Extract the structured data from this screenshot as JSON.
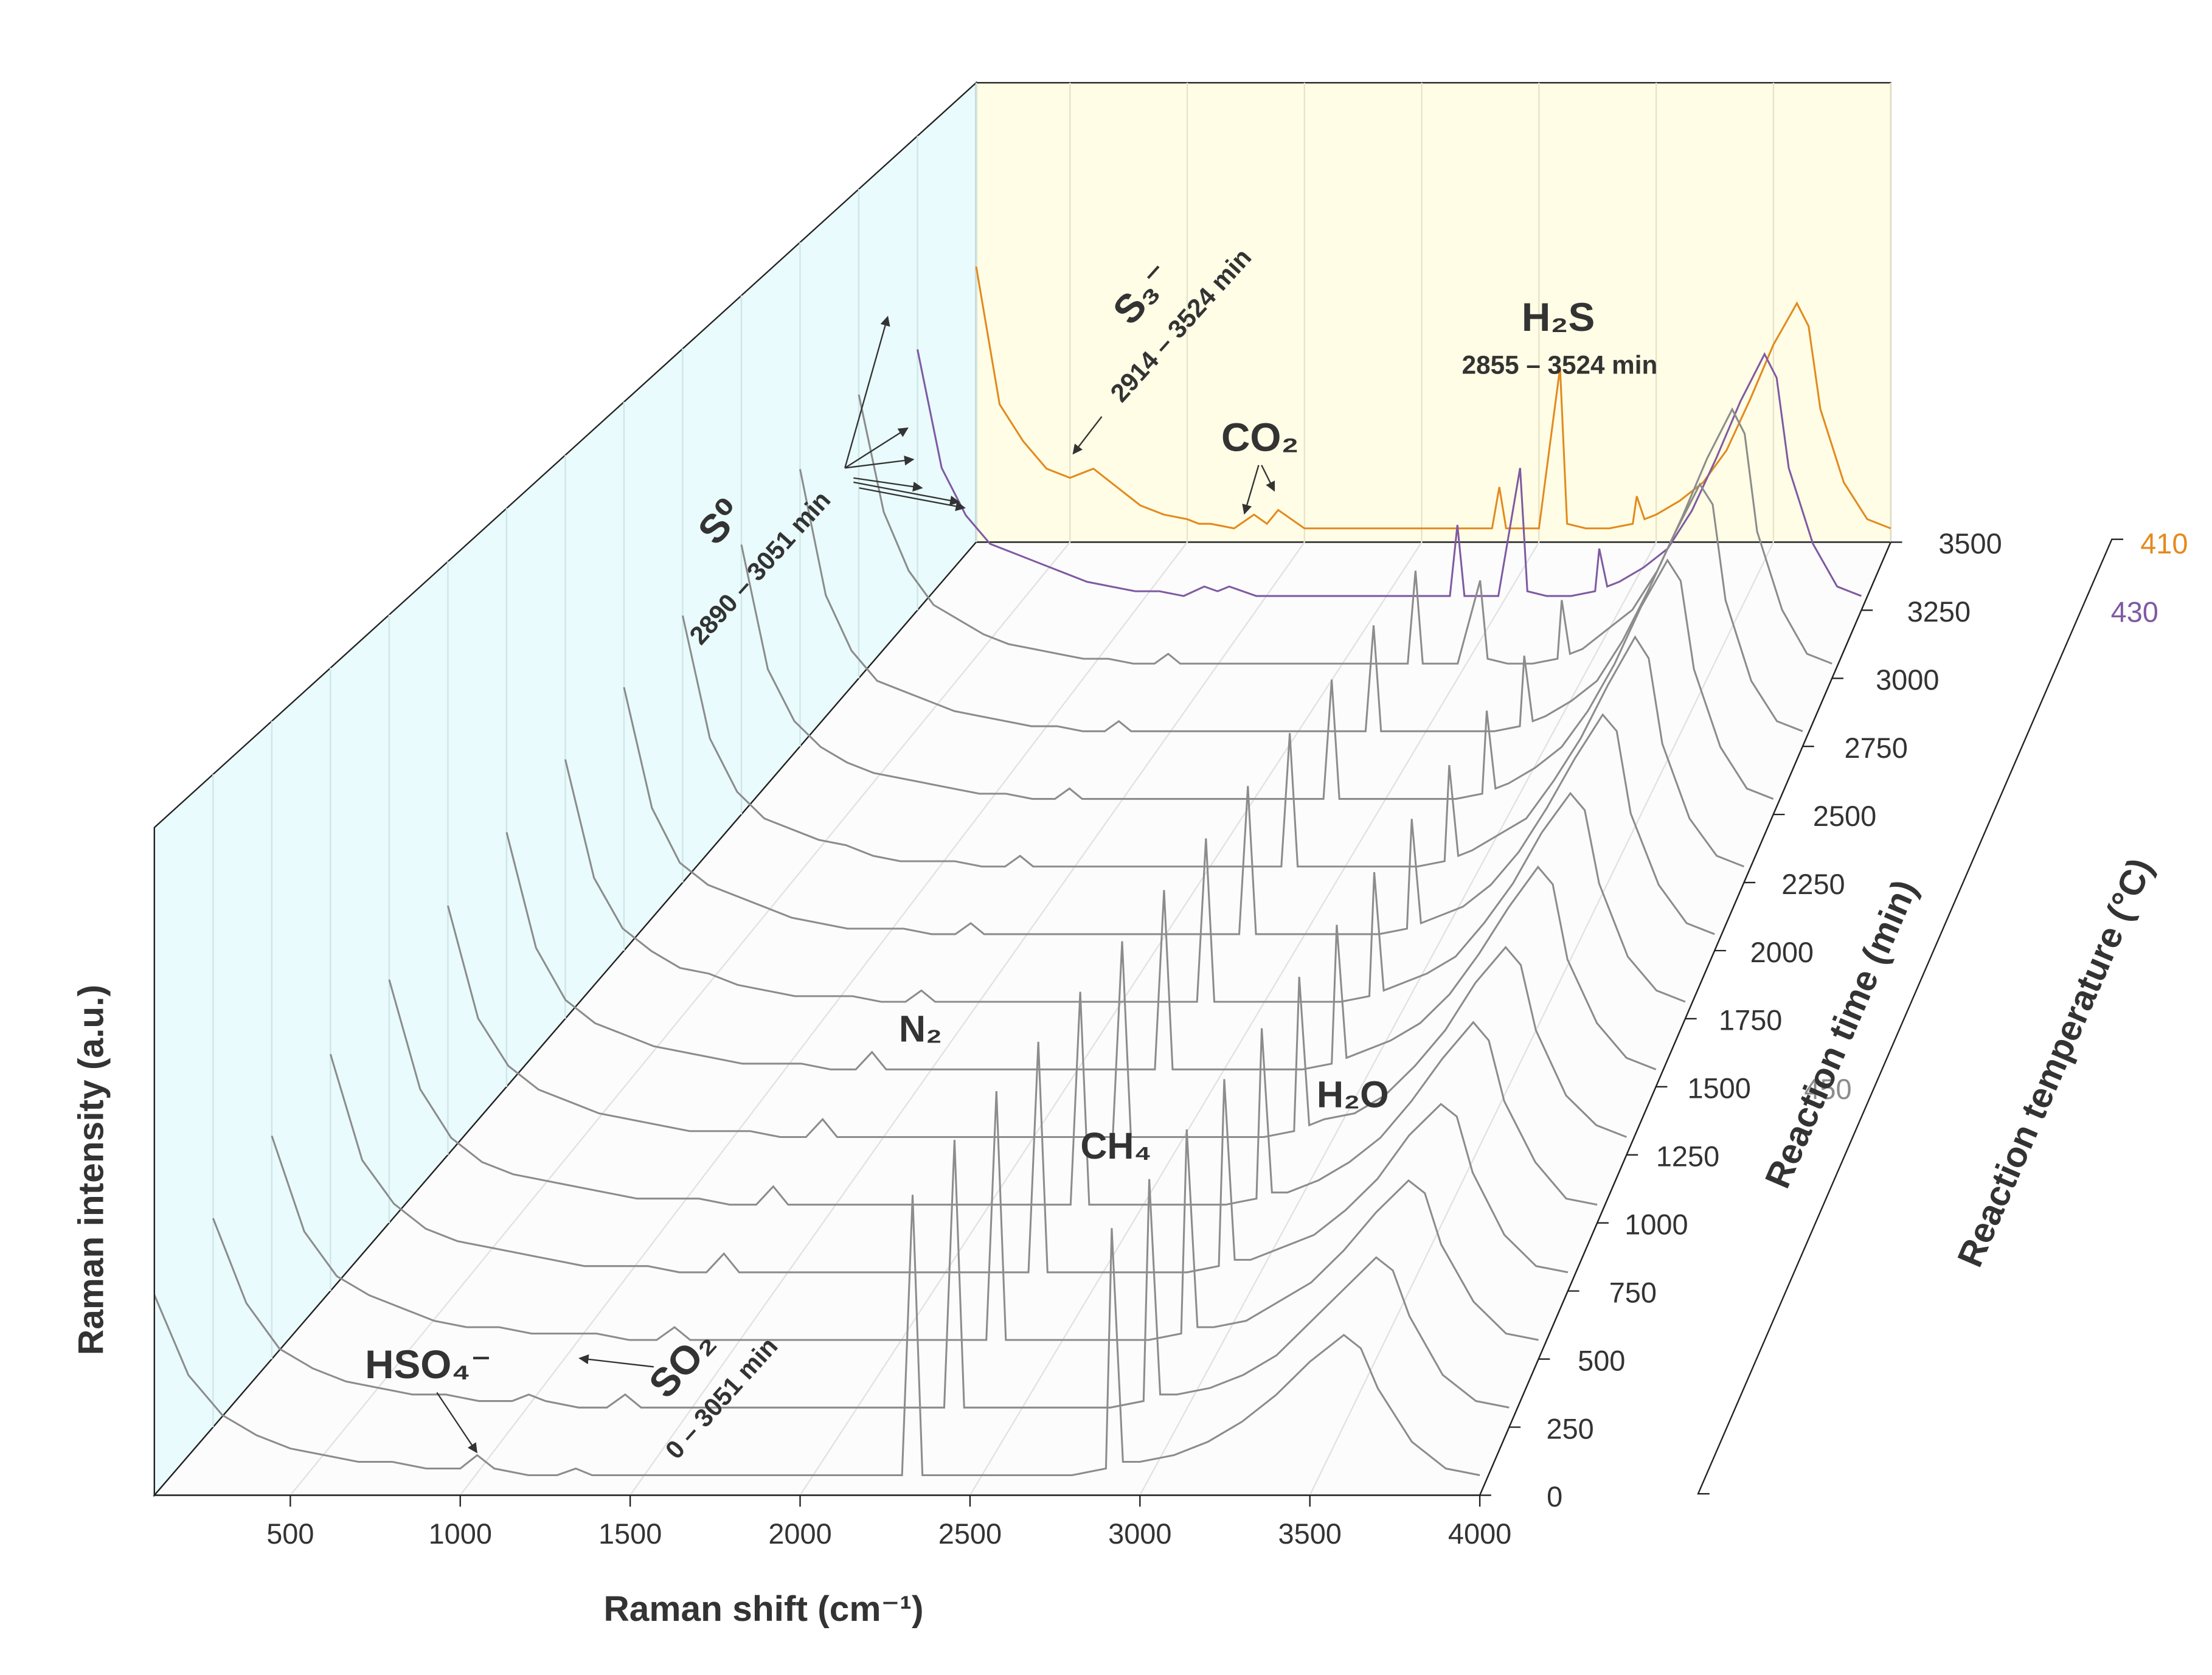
{
  "chart_data": {
    "type": "waterfall",
    "x_label": "Raman shift (cm⁻¹)",
    "y_label": "Raman intensity (a.u.)",
    "z_label": "Reaction time (min)",
    "temperature_label": "Reaction temperature (°C)",
    "xlim": [
      100,
      4000
    ],
    "xticks": [
      500,
      1000,
      1500,
      2000,
      2500,
      3000,
      3500,
      4000
    ],
    "ylim": [
      0,
      100
    ],
    "zlim": [
      0,
      3500
    ],
    "zticks": [
      0,
      250,
      500,
      750,
      1000,
      1250,
      1500,
      1750,
      2000,
      2250,
      2500,
      2750,
      3000,
      3250,
      3500
    ],
    "temperatures": [
      {
        "value": 410,
        "color": "#e38a1e"
      },
      {
        "value": 430,
        "color": "#7f5aa2"
      },
      {
        "value": 450,
        "color": "#8c8c8c"
      }
    ],
    "x": [
      100,
      200,
      300,
      400,
      500,
      600,
      700,
      800,
      900,
      1000,
      1050,
      1100,
      1200,
      1285,
      1340,
      1388,
      1500,
      1600,
      1700,
      1800,
      1900,
      2000,
      2100,
      2200,
      2300,
      2331,
      2360,
      2400,
      2500,
      2590,
      2620,
      2700,
      2800,
      2900,
      2917,
      2950,
      3000,
      3100,
      3200,
      3300,
      3400,
      3500,
      3600,
      3650,
      3700,
      3800,
      3900,
      4000
    ],
    "series": [
      {
        "time": 0,
        "temperature": 450,
        "values": [
          30,
          18,
          12,
          9,
          7,
          6,
          5,
          5,
          4,
          4,
          6,
          4,
          3,
          3,
          4,
          3,
          3,
          3,
          3,
          3,
          3,
          3,
          3,
          3,
          3,
          45,
          3,
          3,
          3,
          3,
          3,
          3,
          3,
          4,
          40,
          5,
          5,
          6,
          8,
          11,
          15,
          20,
          24,
          22,
          16,
          8,
          4,
          3
        ]
      },
      {
        "time": 250,
        "temperature": 450,
        "values": [
          32,
          19,
          12,
          9,
          7,
          6,
          5,
          5,
          4,
          4,
          5,
          4,
          3,
          3,
          5,
          3,
          3,
          3,
          3,
          3,
          3,
          3,
          3,
          3,
          3,
          44,
          3,
          3,
          3,
          3,
          3,
          3,
          3,
          4,
          38,
          5,
          5,
          6,
          8,
          11,
          16,
          21,
          26,
          24,
          17,
          8,
          4,
          3
        ]
      },
      {
        "time": 500,
        "temperature": 450,
        "values": [
          35,
          20,
          13,
          10,
          8,
          6,
          5,
          5,
          4,
          4,
          4,
          4,
          3,
          3,
          5,
          3,
          3,
          3,
          3,
          3,
          3,
          3,
          3,
          3,
          3,
          42,
          3,
          3,
          3,
          3,
          3,
          3,
          3,
          4,
          36,
          5,
          5,
          6,
          9,
          12,
          17,
          23,
          28,
          26,
          18,
          9,
          4,
          3
        ]
      },
      {
        "time": 750,
        "temperature": 450,
        "values": [
          38,
          21,
          14,
          10,
          8,
          7,
          6,
          5,
          4,
          4,
          4,
          4,
          3,
          3,
          6,
          3,
          3,
          3,
          3,
          3,
          3,
          3,
          3,
          3,
          3,
          40,
          3,
          3,
          3,
          3,
          3,
          3,
          3,
          4,
          34,
          5,
          5,
          7,
          9,
          13,
          18,
          25,
          30,
          28,
          19,
          9,
          4,
          3
        ]
      },
      {
        "time": 1000,
        "temperature": 450,
        "values": [
          40,
          22,
          14,
          10,
          8,
          7,
          6,
          5,
          4,
          4,
          4,
          4,
          3,
          3,
          6,
          3,
          3,
          3,
          3,
          3,
          3,
          3,
          3,
          3,
          3,
          38,
          3,
          3,
          3,
          3,
          3,
          3,
          3,
          4,
          32,
          5,
          5,
          7,
          10,
          14,
          20,
          27,
          33,
          30,
          20,
          10,
          4,
          3
        ]
      },
      {
        "time": 1250,
        "temperature": 450,
        "values": [
          42,
          23,
          15,
          11,
          9,
          7,
          6,
          5,
          4,
          4,
          4,
          4,
          3,
          3,
          6,
          3,
          3,
          3,
          3,
          3,
          3,
          3,
          3,
          3,
          3,
          36,
          3,
          3,
          3,
          3,
          3,
          3,
          3,
          4,
          30,
          5,
          6,
          7,
          10,
          15,
          21,
          29,
          35,
          32,
          21,
          10,
          5,
          3
        ]
      },
      {
        "time": 1500,
        "temperature": 450,
        "values": [
          44,
          24,
          15,
          11,
          9,
          7,
          6,
          5,
          4,
          4,
          4,
          4,
          3,
          3,
          6,
          3,
          3,
          3,
          3,
          3,
          3,
          3,
          3,
          3,
          3,
          34,
          3,
          3,
          3,
          3,
          3,
          3,
          3,
          4,
          28,
          5,
          6,
          8,
          11,
          16,
          23,
          31,
          38,
          35,
          22,
          11,
          5,
          3
        ]
      },
      {
        "time": 1750,
        "temperature": 450,
        "values": [
          46,
          25,
          16,
          12,
          9,
          8,
          6,
          5,
          4,
          4,
          4,
          4,
          3,
          3,
          5,
          3,
          3,
          3,
          3,
          3,
          3,
          3,
          3,
          3,
          3,
          32,
          3,
          3,
          3,
          3,
          3,
          3,
          3,
          4,
          26,
          5,
          6,
          8,
          11,
          17,
          24,
          33,
          40,
          37,
          24,
          11,
          5,
          3
        ]
      },
      {
        "time": 2000,
        "temperature": 450,
        "values": [
          48,
          26,
          16,
          12,
          10,
          8,
          6,
          5,
          4,
          4,
          4,
          4,
          3,
          3,
          5,
          3,
          3,
          3,
          3,
          3,
          3,
          3,
          3,
          3,
          3,
          30,
          3,
          3,
          3,
          3,
          3,
          3,
          3,
          4,
          24,
          5,
          6,
          8,
          12,
          18,
          26,
          35,
          43,
          40,
          25,
          12,
          5,
          3
        ]
      },
      {
        "time": 2250,
        "temperature": 450,
        "values": [
          50,
          27,
          17,
          12,
          10,
          8,
          7,
          5,
          4,
          4,
          4,
          4,
          3,
          3,
          5,
          3,
          3,
          3,
          3,
          3,
          3,
          3,
          3,
          3,
          3,
          28,
          3,
          3,
          3,
          3,
          3,
          3,
          3,
          4,
          22,
          5,
          6,
          9,
          12,
          19,
          27,
          37,
          46,
          42,
          26,
          12,
          5,
          3
        ]
      },
      {
        "time": 2500,
        "temperature": 450,
        "values": [
          52,
          28,
          18,
          13,
          10,
          8,
          7,
          6,
          5,
          4,
          4,
          4,
          3,
          3,
          5,
          3,
          3,
          3,
          3,
          3,
          3,
          3,
          3,
          3,
          3,
          26,
          3,
          3,
          3,
          3,
          3,
          3,
          3,
          4,
          20,
          5,
          6,
          9,
          13,
          20,
          29,
          40,
          49,
          45,
          28,
          13,
          5,
          3
        ]
      },
      {
        "time": 2750,
        "temperature": 450,
        "values": [
          55,
          30,
          19,
          13,
          11,
          9,
          7,
          6,
          5,
          4,
          4,
          4,
          3,
          3,
          5,
          3,
          3,
          3,
          3,
          3,
          3,
          3,
          3,
          3,
          3,
          24,
          3,
          3,
          3,
          3,
          3,
          3,
          3,
          4,
          18,
          5,
          6,
          9,
          13,
          21,
          31,
          42,
          52,
          48,
          29,
          13,
          5,
          3
        ]
      },
      {
        "time": 3000,
        "temperature": 450,
        "values": [
          58,
          34,
          22,
          15,
          12,
          9,
          7,
          6,
          5,
          4,
          4,
          4,
          3,
          3,
          5,
          3,
          3,
          3,
          3,
          3,
          3,
          3,
          3,
          3,
          3,
          22,
          3,
          3,
          3,
          20,
          4,
          3,
          3,
          4,
          16,
          5,
          6,
          10,
          14,
          22,
          33,
          45,
          55,
          50,
          30,
          14,
          5,
          3
        ]
      },
      {
        "time": 3250,
        "temperature": 430,
        "values": [
          55,
          30,
          20,
          14,
          12,
          10,
          8,
          6,
          5,
          4,
          4,
          4,
          3,
          5,
          4,
          5,
          3,
          3,
          3,
          3,
          3,
          3,
          3,
          3,
          3,
          18,
          3,
          3,
          3,
          30,
          4,
          3,
          3,
          4,
          13,
          5,
          6,
          9,
          13,
          21,
          32,
          44,
          54,
          49,
          30,
          14,
          5,
          3
        ]
      },
      {
        "time": 3500,
        "temperature": 410,
        "values": [
          60,
          30,
          22,
          16,
          14,
          16,
          12,
          8,
          6,
          5,
          4,
          4,
          3,
          6,
          4,
          7,
          3,
          3,
          3,
          3,
          3,
          3,
          3,
          3,
          3,
          12,
          3,
          3,
          3,
          38,
          4,
          3,
          3,
          4,
          10,
          5,
          6,
          9,
          13,
          20,
          31,
          43,
          52,
          47,
          29,
          13,
          5,
          3
        ]
      }
    ],
    "annotations": [
      "H₂S",
      "2855 – 3524 min",
      "S₃⁻",
      "2914 – 3524 min",
      "CO₂",
      "S⁰",
      "2890 – 3051 min",
      "N₂",
      "CH₄",
      "H₂O",
      "HSO₄⁻",
      "SO₂",
      "0 – 3051 min"
    ]
  }
}
